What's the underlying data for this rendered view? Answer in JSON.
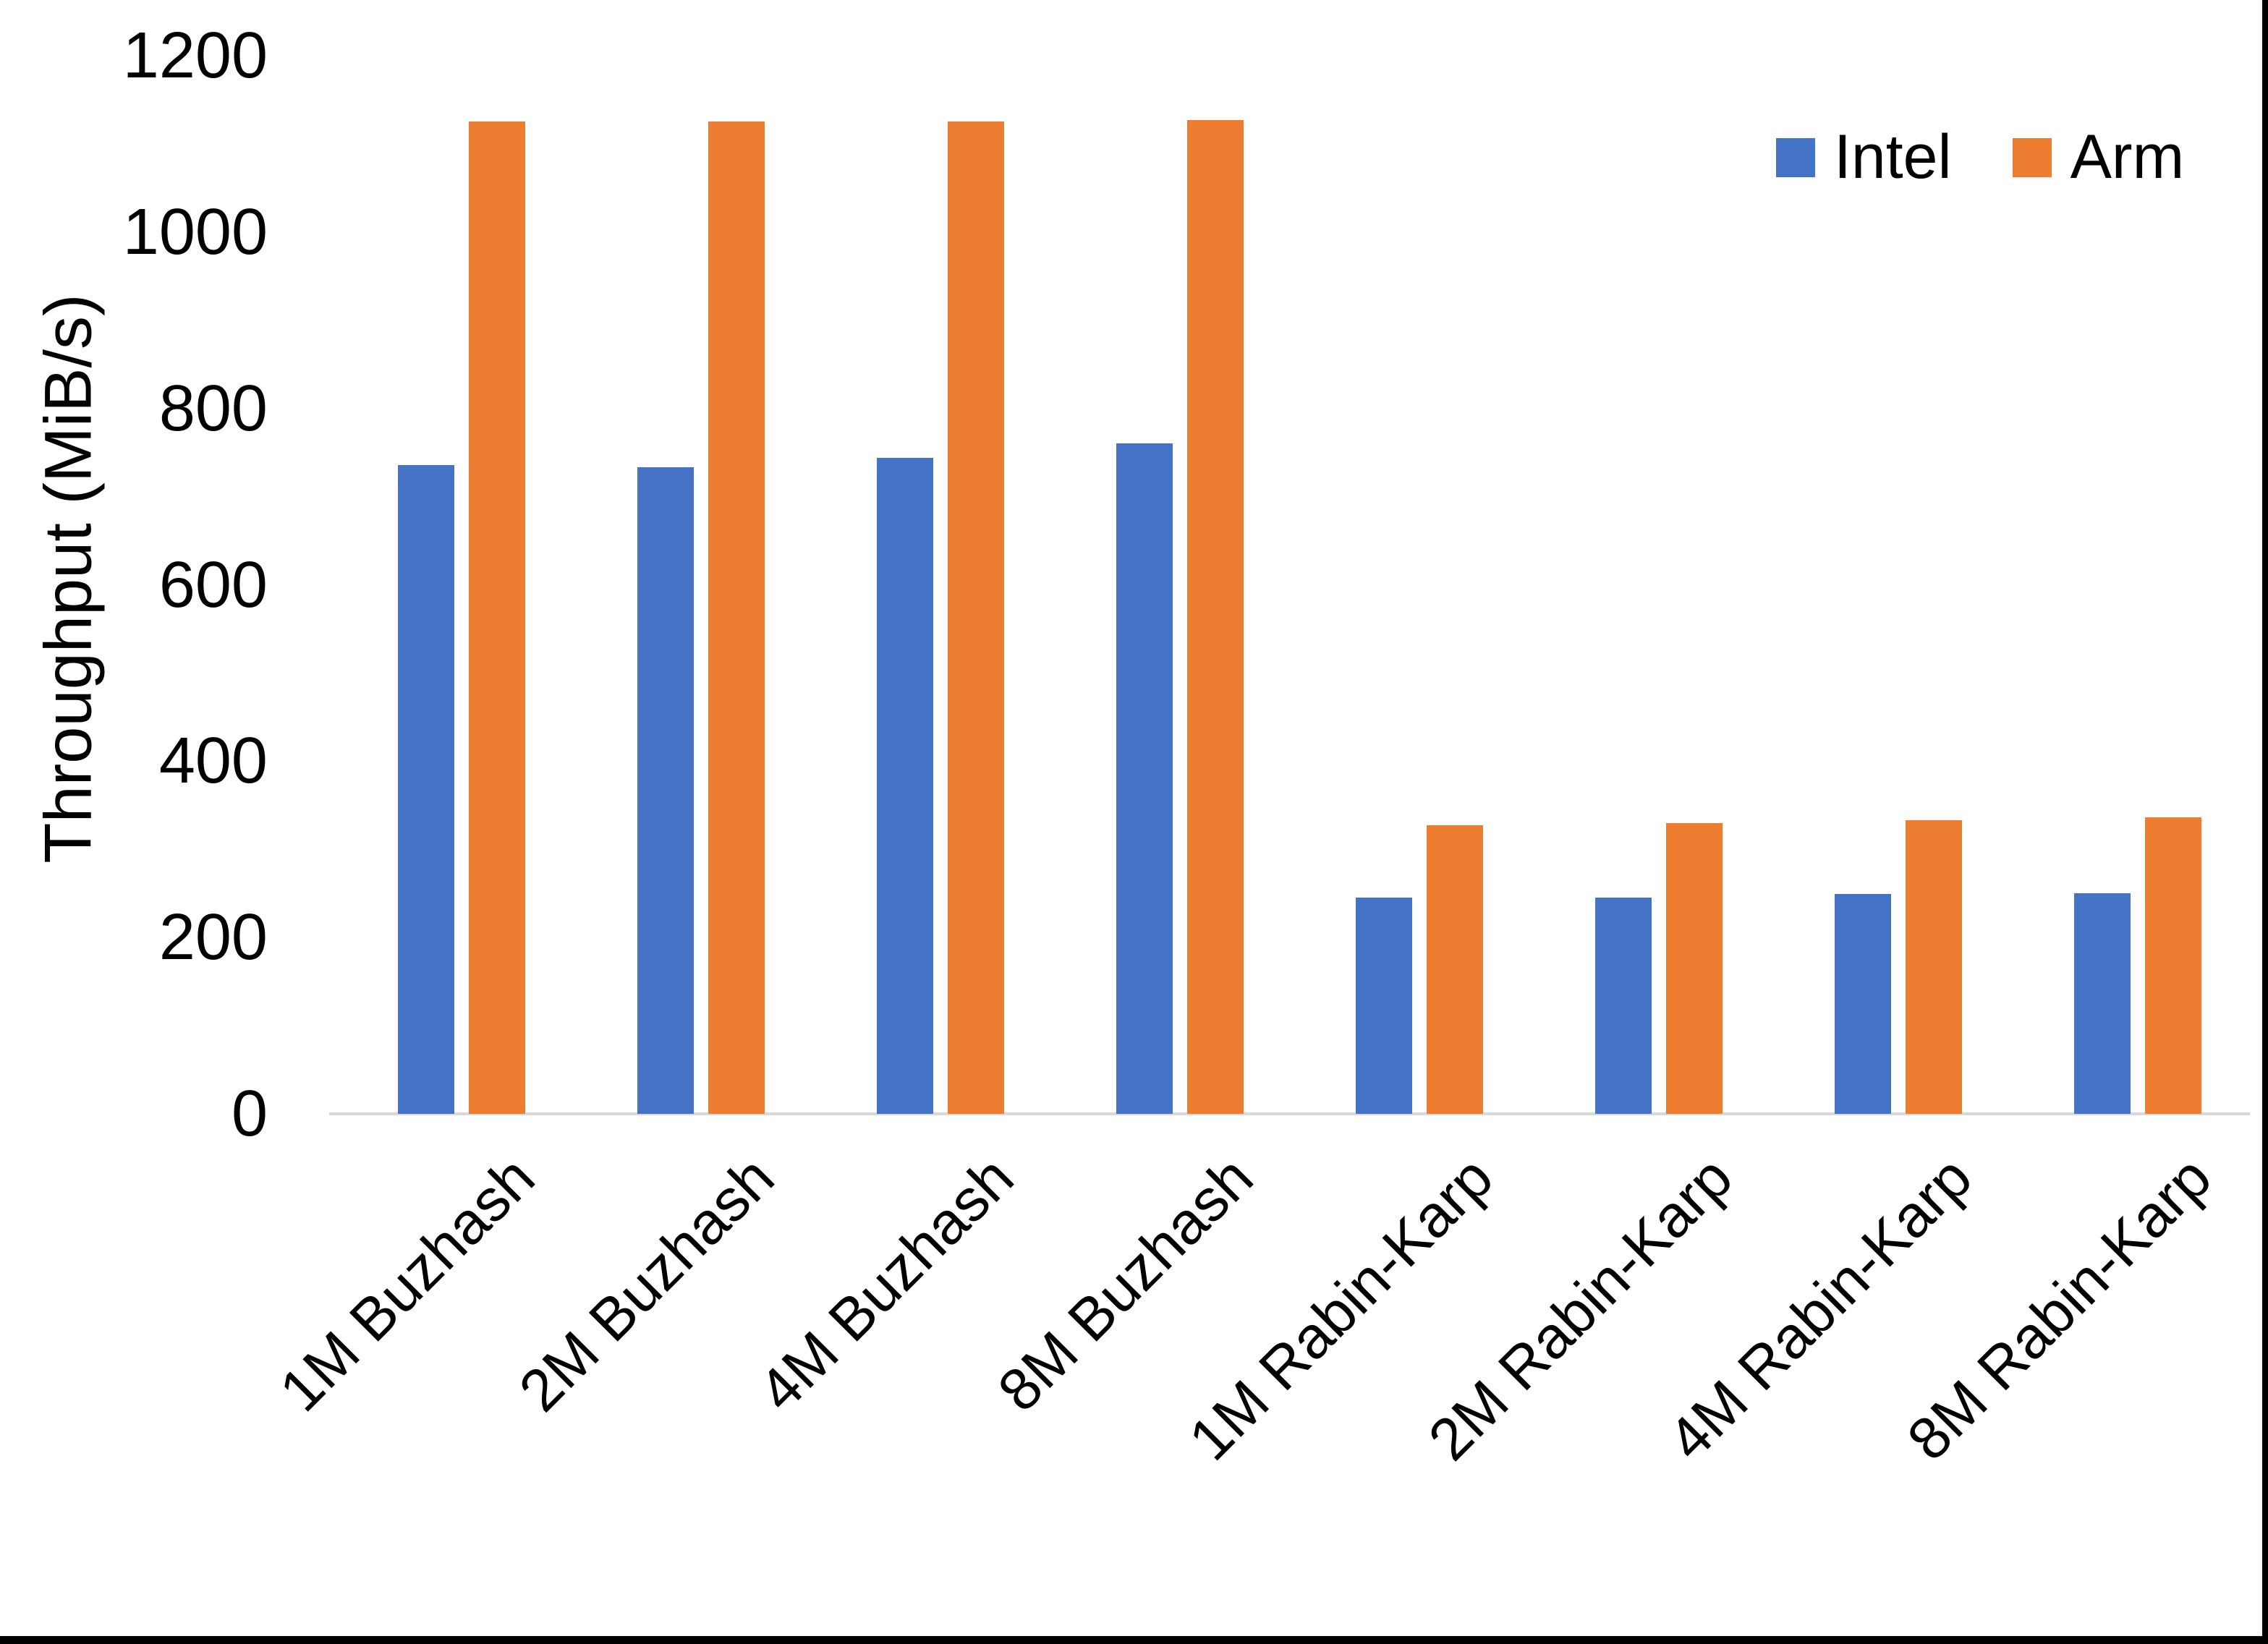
{
  "chart_data": {
    "type": "bar",
    "title": "",
    "xlabel": "",
    "ylabel": "Throughput (MiB/s)",
    "ylim": [
      0,
      1200
    ],
    "yticks": [
      0,
      200,
      400,
      600,
      800,
      1000,
      1200
    ],
    "grid": false,
    "legend_position": "top-right",
    "baseline_color": "#D9D9D9",
    "categories": [
      "1M Buzhash",
      "2M Buzhash",
      "4M Buzhash",
      "8M Buzhash",
      "1M Rabin-Karp",
      "2M Rabin-Karp",
      "4M Rabin-Karp",
      "8M Rabin-Karp"
    ],
    "series": [
      {
        "name": "Intel",
        "color": "#4472C4",
        "values": [
          736,
          733,
          744,
          760,
          245,
          245,
          249,
          250
        ]
      },
      {
        "name": "Arm",
        "color": "#ED7D31",
        "values": [
          1125,
          1125,
          1125,
          1127,
          327,
          330,
          333,
          336
        ]
      }
    ]
  },
  "page": {
    "background": "#FFFFFF",
    "border_color": "#000000"
  }
}
